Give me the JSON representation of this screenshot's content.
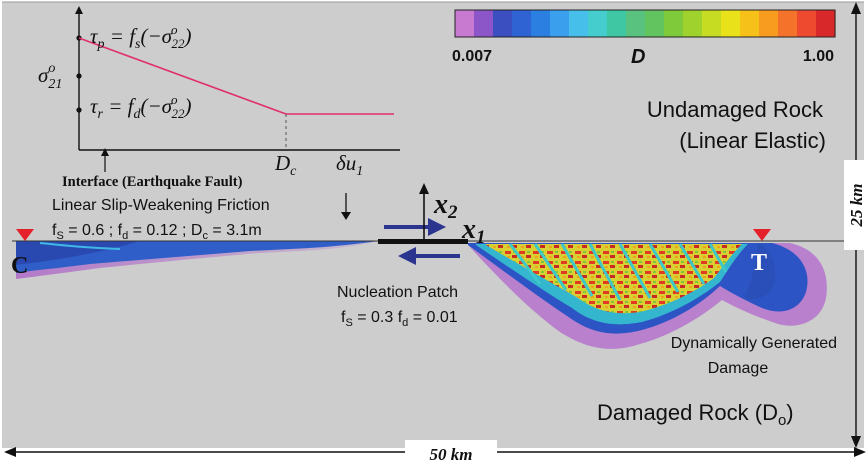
{
  "colorbar": {
    "min_label": "0.007",
    "max_label": "1.00",
    "variable": "D",
    "colors": [
      "#c77ad0",
      "#8d56c8",
      "#3b4fc0",
      "#2f62d2",
      "#2b7fe0",
      "#3aa0ee",
      "#46c0ea",
      "#45cccc",
      "#3fc7a4",
      "#58c27e",
      "#62c45e",
      "#7fca3b",
      "#9fd22c",
      "#c6dc22",
      "#e9e21a",
      "#f6c21a",
      "#f79c1e",
      "#f5722a",
      "#ee4a30",
      "#d9282a"
    ]
  },
  "friction_law": {
    "tau_p_label": "τp = fs(−σo22)",
    "sigma_label": "σo21",
    "tau_r_label": "τr = fd(−σo22)",
    "dc_label": "Dc",
    "du_label": "δu1"
  },
  "labels": {
    "undamaged_line1": "Undamaged Rock",
    "undamaged_line2": "(Linear Elastic)",
    "interface": "Interface (Earthquake Fault)",
    "friction_title": "Linear Slip-Weakening Friction",
    "friction_params": "fS = 0.6 ; fd = 0.12 ; Dc = 3.1m",
    "nucleation_title": "Nucleation Patch",
    "nucleation_params": "fS = 0.3 fd = 0.01",
    "generated_line1": "Dynamically Generated",
    "generated_line2": "Damage",
    "damaged_rock": "Damaged Rock (Do)",
    "x1": "x1",
    "x2": "x2",
    "C": "C",
    "T": "T",
    "width": "50 km",
    "height": "25 km"
  }
}
